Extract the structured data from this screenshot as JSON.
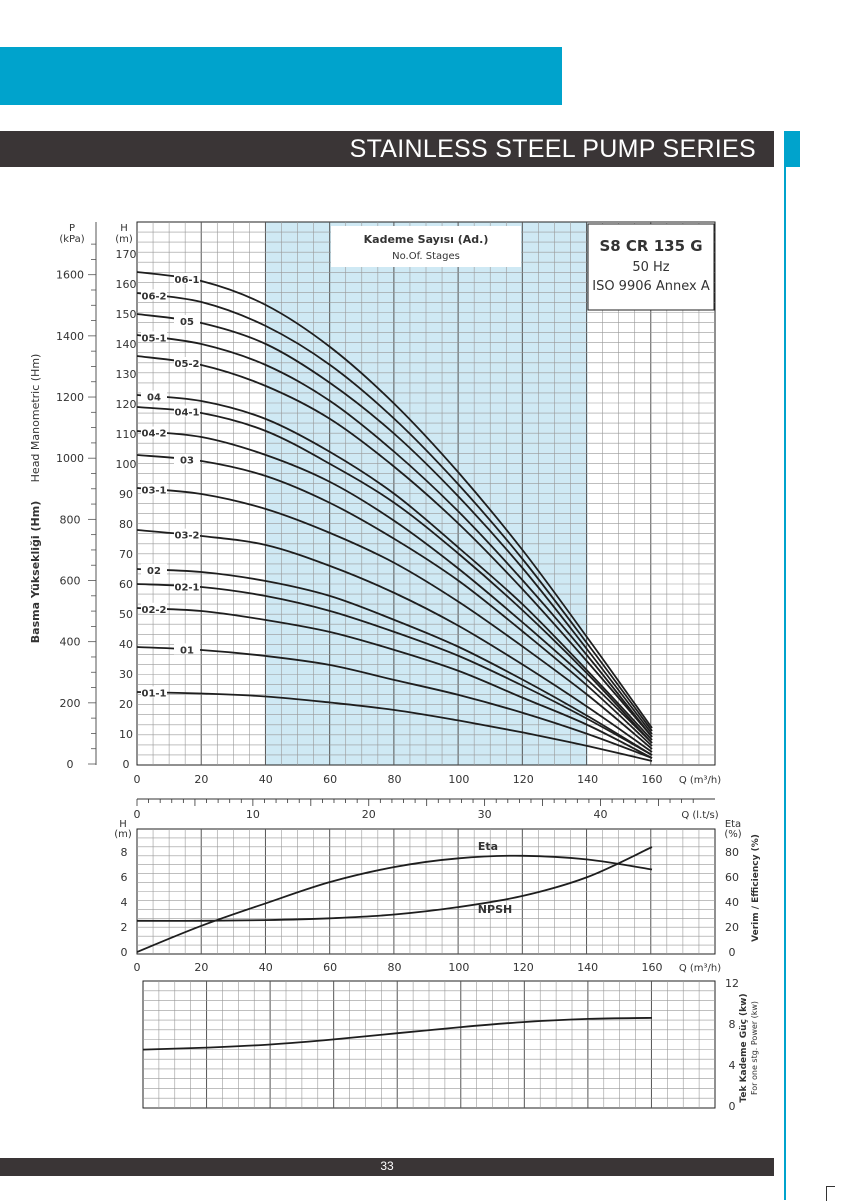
{
  "header": {
    "title": "STAINLESS STEEL PUMP SERIES"
  },
  "footer": {
    "page_number": "33"
  },
  "colors": {
    "accent": "#00a3cc",
    "dark_bar": "#3a3536",
    "highlight_band": "#cfe9f4",
    "curve": "#1e1e1e"
  },
  "chart_data": [
    {
      "type": "line",
      "name": "head-curves",
      "title_box": {
        "model": "S8 CR 135 G",
        "frequency": "50 Hz",
        "standard": "ISO 9906 Annex A"
      },
      "stages_box": {
        "title": "Kademe Sayısı (Ad.)",
        "subtitle": "No.Of. Stages"
      },
      "xlabel": "Q (m3/h)",
      "x_ticks": [
        0,
        20,
        40,
        60,
        80,
        100,
        120,
        140,
        160
      ],
      "xlim": [
        0,
        160
      ],
      "ylabel_left_1": "Basma Yüksekliği (Hm)",
      "ylabel_left_2": "Head Manometric (Hm)",
      "y_unit_H": "H\n(m)",
      "y_ticks_H": [
        0,
        10,
        20,
        30,
        40,
        50,
        60,
        70,
        80,
        90,
        100,
        110,
        120,
        130,
        140,
        150,
        160,
        170
      ],
      "ylim_H": [
        0,
        170
      ],
      "y_unit_P": "P\n(kPa)",
      "y_ticks_P": [
        0,
        200,
        400,
        600,
        800,
        1000,
        1200,
        1400,
        1600
      ],
      "secondary_x_label": "Q (l.t/s)",
      "secondary_x_ticks": [
        0,
        10,
        20,
        30,
        40
      ],
      "highlight_range": [
        40,
        140
      ],
      "grid": true,
      "x": [
        0,
        20,
        40,
        60,
        80,
        100,
        120,
        140,
        160
      ],
      "series": [
        {
          "name": "06-1",
          "values": [
            164,
            161,
            153,
            139,
            120,
            97,
            71,
            42,
            12
          ]
        },
        {
          "name": "06-2",
          "values": [
            157,
            154,
            146,
            133,
            115,
            93,
            68,
            40,
            11
          ]
        },
        {
          "name": "05",
          "values": [
            150,
            147,
            140,
            127,
            110,
            89,
            65,
            38,
            10
          ]
        },
        {
          "name": "05-1",
          "values": [
            143,
            140,
            133,
            121,
            104,
            84,
            61,
            36,
            9
          ]
        },
        {
          "name": "05-2",
          "values": [
            136,
            133,
            126,
            115,
            99,
            80,
            58,
            34,
            9
          ]
        },
        {
          "name": "04",
          "values": [
            123,
            121,
            115,
            104,
            90,
            72,
            53,
            31,
            8
          ]
        },
        {
          "name": "04-1",
          "values": [
            119,
            117,
            111,
            100,
            87,
            70,
            51,
            30,
            7
          ]
        },
        {
          "name": "04-2",
          "values": [
            111,
            109,
            103,
            94,
            81,
            65,
            47,
            28,
            7
          ]
        },
        {
          "name": "03",
          "values": [
            103,
            101,
            96,
            87,
            75,
            61,
            44,
            26,
            6
          ]
        },
        {
          "name": "03-1",
          "values": [
            92,
            90,
            85,
            77,
            67,
            54,
            39,
            23,
            5
          ]
        },
        {
          "name": "03-2",
          "values": [
            78,
            76,
            73,
            66,
            57,
            46,
            33,
            19,
            4
          ]
        },
        {
          "name": "02",
          "values": [
            65,
            64,
            61,
            56,
            48,
            39,
            28,
            16,
            3
          ]
        },
        {
          "name": "02-1",
          "values": [
            60,
            59,
            56,
            51,
            44,
            36,
            26,
            15,
            3
          ]
        },
        {
          "name": "02-2",
          "values": [
            52,
            51,
            48,
            44,
            38,
            31,
            22,
            13,
            2
          ]
        },
        {
          "name": "01",
          "values": [
            39,
            38,
            36,
            33,
            28,
            23,
            17,
            10,
            2
          ]
        },
        {
          "name": "01-1",
          "values": [
            24,
            23.5,
            22.5,
            20.5,
            18,
            14.5,
            10.5,
            6,
            1
          ]
        }
      ]
    },
    {
      "type": "line",
      "name": "npsh-efficiency",
      "xlabel": "Q (m3/h)",
      "x_ticks": [
        0,
        20,
        40,
        60,
        80,
        100,
        120,
        140,
        160
      ],
      "xlim": [
        0,
        160
      ],
      "ylabel_left": "H\n(m)",
      "y_ticks_left": [
        0,
        2,
        4,
        6,
        8
      ],
      "ylim_left": [
        0,
        8.9
      ],
      "ylabel_right": "Verim / Efficiency (%)",
      "y_unit_right": "Eta\n(%)",
      "y_ticks_right": [
        0,
        20,
        40,
        60,
        80
      ],
      "ylim_right": [
        0,
        89
      ],
      "grid": true,
      "series": [
        {
          "name": "Eta",
          "axis": "right",
          "x": [
            0,
            20,
            40,
            60,
            80,
            100,
            120,
            140,
            160
          ],
          "values": [
            0,
            21,
            39,
            56,
            68,
            75,
            77,
            74,
            66
          ]
        },
        {
          "name": "NPSH",
          "axis": "left",
          "x": [
            0,
            20,
            40,
            60,
            80,
            100,
            120,
            140,
            160
          ],
          "values": [
            2.5,
            2.5,
            2.55,
            2.7,
            3.0,
            3.6,
            4.5,
            6.0,
            8.4
          ]
        }
      ]
    },
    {
      "type": "line",
      "name": "power",
      "ylabel_right": "Tek Kademe Güç (kw)",
      "ylabel_right_2": "For one stg. Power (kw)",
      "y_ticks_right": [
        0,
        4,
        8,
        12
      ],
      "ylim_right": [
        0,
        12
      ],
      "xlim": [
        0,
        160
      ],
      "grid": true,
      "series": [
        {
          "name": "",
          "x": [
            0,
            20,
            40,
            60,
            80,
            100,
            120,
            140,
            160
          ],
          "values": [
            5.5,
            5.7,
            6.0,
            6.5,
            7.1,
            7.7,
            8.2,
            8.5,
            8.6
          ]
        }
      ]
    }
  ]
}
